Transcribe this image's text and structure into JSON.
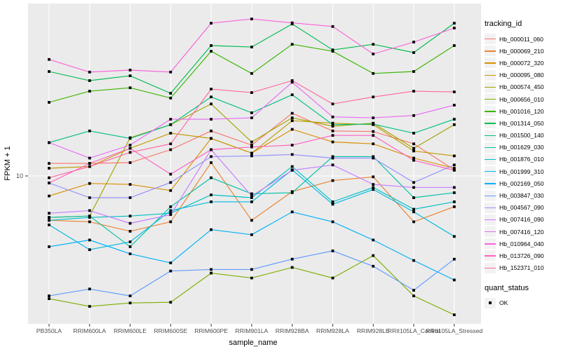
{
  "layout_colors": {
    "panel_bg": "#EBEBEB",
    "grid": "#FFFFFF",
    "axis_text": "#4D4D4D",
    "tick_mark": "#333333",
    "legend_key_bg": "#F2F2F2",
    "point_color": "#000000"
  },
  "legend": {
    "tracking_title": "tracking_id",
    "quant_title": "quant_status",
    "quant_items": [
      {
        "label": "OK"
      }
    ]
  },
  "chart_data": {
    "type": "line",
    "title": "",
    "xlabel": "sample_name",
    "ylabel": "FPKM + 1",
    "y_scale": "log10",
    "y_breaks": [
      10
    ],
    "y_break_labels": [
      "10"
    ],
    "ylim": [
      1.9,
      65
    ],
    "grid": true,
    "legend_position": "right",
    "point_shape": "square",
    "categories": [
      "PB350LA",
      "RRIM600LA",
      "RRIM600LE",
      "RRIM600SE",
      "RRIM600PE",
      "RRIM901LA",
      "RRIM928BA",
      "RRIM928LA",
      "RRIM928LE",
      "RRII105LA_Control",
      "RRII105LA_Stressed"
    ],
    "series": [
      {
        "name": "Hb_000011_060",
        "color": "#F8766D",
        "values": [
          11.5,
          11.5,
          11.6,
          13.4,
          16.5,
          14.1,
          20.1,
          16.5,
          16.4,
          14.3,
          10.7
        ]
      },
      {
        "name": "Hb_000069_210",
        "color": "#EA8331",
        "values": [
          6.1,
          6.0,
          5.4,
          6.0,
          11.6,
          6.1,
          8.4,
          9.5,
          9.9,
          6.0,
          7.1
        ]
      },
      {
        "name": "Hb_000072_320",
        "color": "#D89000",
        "values": [
          8.0,
          9.2,
          9.1,
          8.5,
          15.2,
          12.9,
          16.8,
          14.6,
          14.3,
          12.2,
          10.9
        ]
      },
      {
        "name": "Hb_000095_080",
        "color": "#C09B00",
        "values": [
          10.9,
          11.1,
          13.6,
          16.1,
          15.2,
          12.9,
          18.5,
          18.0,
          17.7,
          13.2,
          12.5
        ]
      },
      {
        "name": "Hb_000574_450",
        "color": "#A3A500",
        "values": [
          6.3,
          6.4,
          15.3,
          17.7,
          22.3,
          14.6,
          19.1,
          17.4,
          18.0,
          13.6,
          17.7
        ]
      },
      {
        "name": "Hb_000656_010",
        "color": "#7CAE00",
        "values": [
          2.55,
          2.34,
          2.43,
          2.45,
          3.39,
          3.21,
          3.61,
          3.21,
          4.12,
          2.63,
          2.13
        ]
      },
      {
        "name": "Hb_001016_120",
        "color": "#39B600",
        "values": [
          22.7,
          25.7,
          26.7,
          23.8,
          40.1,
          31.3,
          43.3,
          40.1,
          31.3,
          32.0,
          42.7
        ]
      },
      {
        "name": "Hb_001314_050",
        "color": "#00BB4E",
        "values": [
          32.0,
          28.9,
          30.5,
          25.1,
          42.7,
          42.0,
          54.3,
          40.7,
          43.3,
          39.5,
          54.8
        ]
      },
      {
        "name": "Hb_001500_140",
        "color": "#00BF7D",
        "values": [
          14.5,
          16.5,
          15.2,
          17.7,
          24.1,
          20.2,
          24.7,
          17.7,
          17.8,
          16.1,
          18.8
        ]
      },
      {
        "name": "Hb_001629_030",
        "color": "#00C1A3",
        "values": [
          6.3,
          6.4,
          4.55,
          7.1,
          9.8,
          8.2,
          8.3,
          12.4,
          12.4,
          7.85,
          8.3
        ]
      },
      {
        "name": "Hb_001876_010",
        "color": "#00BFC4",
        "values": [
          6.1,
          6.3,
          6.4,
          6.6,
          8.1,
          7.85,
          11.1,
          7.5,
          8.8,
          6.9,
          7.5
        ]
      },
      {
        "name": "Hb_001999_310",
        "color": "#00BAE0",
        "values": [
          5.8,
          4.4,
          4.8,
          6.8,
          7.5,
          7.5,
          10.7,
          7.3,
          8.6,
          6.7,
          5.1
        ]
      },
      {
        "name": "Hb_002169_050",
        "color": "#00B0F6",
        "values": [
          4.55,
          4.9,
          4.2,
          3.8,
          5.5,
          5.2,
          6.7,
          6.0,
          4.9,
          3.9,
          3.14
        ]
      },
      {
        "name": "Hb_003847_030",
        "color": "#619CFF",
        "values": [
          2.63,
          2.84,
          2.63,
          3.47,
          3.53,
          3.53,
          3.96,
          4.34,
          3.66,
          2.8,
          3.96
        ]
      },
      {
        "name": "Hb_004567_090",
        "color": "#9590FF",
        "values": [
          9.25,
          7.85,
          7.85,
          9.3,
          12.4,
          12.5,
          12.7,
          12.2,
          12.2,
          9.3,
          11.3
        ]
      },
      {
        "name": "Hb_007416_090",
        "color": "#C77CFF",
        "values": [
          6.6,
          6.8,
          5.9,
          6.5,
          13.4,
          8.0,
          10.65,
          11.3,
          9.1,
          8.8,
          8.8
        ]
      },
      {
        "name": "Hb_007416_120",
        "color": "#E76BF3",
        "values": [
          14.5,
          12.2,
          14.1,
          18.8,
          18.8,
          19.1,
          28.4,
          19.3,
          19.1,
          19.6,
          22.0
        ]
      },
      {
        "name": "Hb_010964_040",
        "color": "#FA62DB",
        "values": [
          36.6,
          31.8,
          32.5,
          31.8,
          54.8,
          57.4,
          55.0,
          52.8,
          38.9,
          44.4,
          51.9
        ]
      },
      {
        "name": "Hb_013726_090",
        "color": "#FF61C3",
        "values": [
          9.25,
          11.5,
          13.6,
          10.2,
          13.4,
          13.8,
          14.1,
          15.7,
          15.7,
          11.9,
          10.65
        ]
      },
      {
        "name": "Hb_152371_010",
        "color": "#FF67A4",
        "values": [
          9.8,
          11.1,
          13.0,
          14.3,
          26.3,
          25.3,
          28.9,
          22.3,
          24.1,
          25.7,
          25.5
        ]
      }
    ],
    "quant_status": {
      "label": "OK",
      "point_shape": "square",
      "point_color": "#000000"
    }
  }
}
